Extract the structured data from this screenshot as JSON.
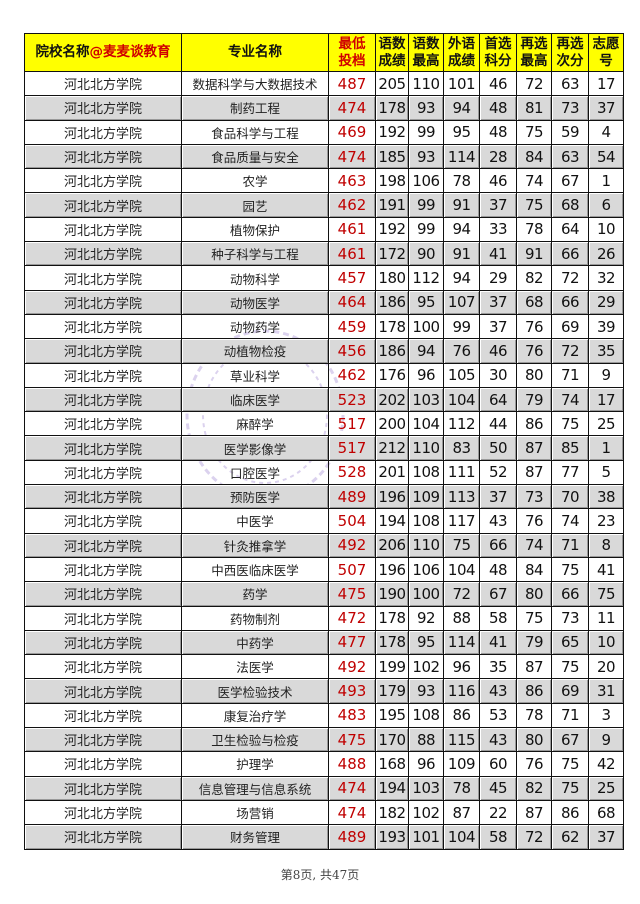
{
  "header": {
    "school_label": "院校名称",
    "school_brand": "@麦麦谈教育",
    "major": "专业名称",
    "min_score": [
      "最低",
      "投档"
    ],
    "yushu_score": [
      "语数",
      "成绩"
    ],
    "yushu_max": [
      "语数",
      "最高"
    ],
    "foreign": [
      "外语",
      "成绩"
    ],
    "first_choice": [
      "首选",
      "科分"
    ],
    "reselect_max": [
      "再选",
      "最高"
    ],
    "reselect_second": [
      "再选",
      "次分"
    ],
    "wish_no": [
      "志愿",
      "号"
    ]
  },
  "rows": [
    [
      "河北北方学院",
      "数据科学与大数据技术",
      "487",
      "205",
      "110",
      "101",
      "46",
      "72",
      "63",
      "17"
    ],
    [
      "河北北方学院",
      "制药工程",
      "474",
      "178",
      "93",
      "94",
      "48",
      "81",
      "73",
      "37"
    ],
    [
      "河北北方学院",
      "食品科学与工程",
      "469",
      "192",
      "99",
      "95",
      "48",
      "75",
      "59",
      "4"
    ],
    [
      "河北北方学院",
      "食品质量与安全",
      "474",
      "185",
      "93",
      "114",
      "28",
      "84",
      "63",
      "54"
    ],
    [
      "河北北方学院",
      "农学",
      "463",
      "198",
      "106",
      "78",
      "46",
      "74",
      "67",
      "1"
    ],
    [
      "河北北方学院",
      "园艺",
      "462",
      "191",
      "99",
      "91",
      "37",
      "75",
      "68",
      "6"
    ],
    [
      "河北北方学院",
      "植物保护",
      "461",
      "192",
      "99",
      "94",
      "33",
      "78",
      "64",
      "10"
    ],
    [
      "河北北方学院",
      "种子科学与工程",
      "461",
      "172",
      "90",
      "91",
      "41",
      "91",
      "66",
      "26"
    ],
    [
      "河北北方学院",
      "动物科学",
      "457",
      "180",
      "112",
      "94",
      "29",
      "82",
      "72",
      "32"
    ],
    [
      "河北北方学院",
      "动物医学",
      "464",
      "186",
      "95",
      "107",
      "37",
      "68",
      "66",
      "29"
    ],
    [
      "河北北方学院",
      "动物药学",
      "459",
      "178",
      "100",
      "99",
      "37",
      "76",
      "69",
      "39"
    ],
    [
      "河北北方学院",
      "动植物检疫",
      "456",
      "186",
      "94",
      "76",
      "46",
      "76",
      "72",
      "35"
    ],
    [
      "河北北方学院",
      "草业科学",
      "462",
      "176",
      "96",
      "105",
      "30",
      "80",
      "71",
      "9"
    ],
    [
      "河北北方学院",
      "临床医学",
      "523",
      "202",
      "103",
      "104",
      "64",
      "79",
      "74",
      "17"
    ],
    [
      "河北北方学院",
      "麻醉学",
      "517",
      "200",
      "104",
      "112",
      "44",
      "86",
      "75",
      "25"
    ],
    [
      "河北北方学院",
      "医学影像学",
      "517",
      "212",
      "110",
      "83",
      "50",
      "87",
      "85",
      "1"
    ],
    [
      "河北北方学院",
      "口腔医学",
      "528",
      "201",
      "108",
      "111",
      "52",
      "87",
      "77",
      "5"
    ],
    [
      "河北北方学院",
      "预防医学",
      "489",
      "196",
      "109",
      "113",
      "37",
      "73",
      "70",
      "38"
    ],
    [
      "河北北方学院",
      "中医学",
      "504",
      "194",
      "108",
      "117",
      "43",
      "76",
      "74",
      "23"
    ],
    [
      "河北北方学院",
      "针灸推拿学",
      "492",
      "206",
      "110",
      "75",
      "66",
      "74",
      "71",
      "8"
    ],
    [
      "河北北方学院",
      "中西医临床医学",
      "507",
      "196",
      "106",
      "104",
      "48",
      "84",
      "75",
      "41"
    ],
    [
      "河北北方学院",
      "药学",
      "475",
      "190",
      "100",
      "72",
      "67",
      "80",
      "66",
      "75"
    ],
    [
      "河北北方学院",
      "药物制剂",
      "472",
      "178",
      "92",
      "88",
      "58",
      "75",
      "73",
      "11"
    ],
    [
      "河北北方学院",
      "中药学",
      "477",
      "178",
      "95",
      "114",
      "41",
      "79",
      "65",
      "10"
    ],
    [
      "河北北方学院",
      "法医学",
      "492",
      "199",
      "102",
      "96",
      "35",
      "87",
      "75",
      "20"
    ],
    [
      "河北北方学院",
      "医学检验技术",
      "493",
      "179",
      "93",
      "116",
      "43",
      "86",
      "69",
      "31"
    ],
    [
      "河北北方学院",
      "康复治疗学",
      "483",
      "195",
      "108",
      "86",
      "53",
      "78",
      "71",
      "3"
    ],
    [
      "河北北方学院",
      "卫生检验与检疫",
      "475",
      "170",
      "88",
      "115",
      "43",
      "80",
      "67",
      "9"
    ],
    [
      "河北北方学院",
      "护理学",
      "488",
      "168",
      "96",
      "109",
      "60",
      "76",
      "75",
      "42"
    ],
    [
      "河北北方学院",
      "信息管理与信息系统",
      "474",
      "194",
      "103",
      "78",
      "45",
      "82",
      "75",
      "25"
    ],
    [
      "河北北方学院",
      "场营销",
      "474",
      "182",
      "102",
      "87",
      "22",
      "87",
      "86",
      "68"
    ],
    [
      "河北北方学院",
      "财务管理",
      "489",
      "193",
      "101",
      "104",
      "58",
      "72",
      "62",
      "37"
    ]
  ],
  "footer": "第8页, 共47页",
  "watermark": "麦麦谈教育",
  "colors": {
    "header_bg": "#ffff00",
    "min_score": "#c00000",
    "alt_row": "#d9d9d9",
    "stamp": "#9b7fd0"
  }
}
